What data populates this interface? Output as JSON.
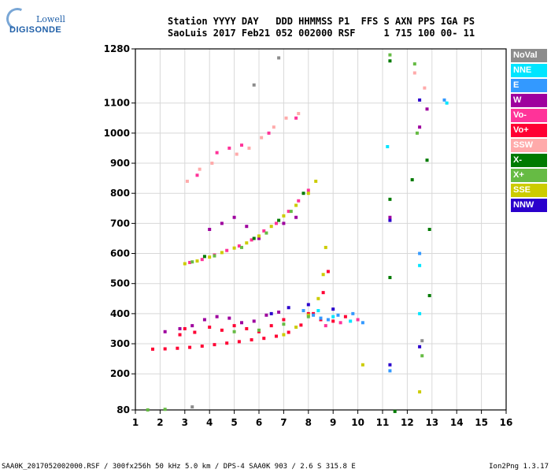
{
  "logo": {
    "line1": "Lowell",
    "line2": "DIGISONDE"
  },
  "header": {
    "row1": "Station YYYY DAY   DDD HHMMSS P1  FFS S AXN PPS IGA PS",
    "row2": "SaoLuis 2017 Feb21 052 002000 RSF     1 715 100 00- 11"
  },
  "legend": [
    {
      "label": "NoVal",
      "color": "#8c8c8c"
    },
    {
      "label": "NNE",
      "color": "#00e5ff"
    },
    {
      "label": "E",
      "color": "#3399ff"
    },
    {
      "label": "W",
      "color": "#9e009e"
    },
    {
      "label": "Vo-",
      "color": "#ff3399"
    },
    {
      "label": "Vo+",
      "color": "#ff0033"
    },
    {
      "label": "SSW",
      "color": "#ffaaaa"
    },
    {
      "label": "X-",
      "color": "#007a00"
    },
    {
      "label": "X+",
      "color": "#66bb44"
    },
    {
      "label": "SSE",
      "color": "#cccc00"
    },
    {
      "label": "NNW",
      "color": "#2a00cc"
    }
  ],
  "footer": {
    "left": "SAA0K_2017052002000.RSF / 300fx256h 50 kHz 5.0 km / DPS-4 SAA0K 903 / 2.6 S 315.8 E",
    "right": "Ion2Png 1.3.17"
  },
  "chart_data": {
    "type": "scatter",
    "xlim": [
      1,
      16
    ],
    "ylim": [
      80,
      1280
    ],
    "x_ticks": [
      1,
      2,
      3,
      4,
      5,
      6,
      7,
      8,
      9,
      10,
      11,
      12,
      13,
      14,
      15,
      16
    ],
    "y_ticks": [
      80,
      200,
      300,
      400,
      500,
      600,
      700,
      800,
      900,
      1000,
      1100,
      1280
    ],
    "grid": true,
    "legend_position": "right",
    "series": [
      {
        "name": "Vo+",
        "color": "#ff0033",
        "points": [
          [
            1.7,
            282
          ],
          [
            2.2,
            283
          ],
          [
            2.7,
            285
          ],
          [
            3.2,
            288
          ],
          [
            3.7,
            292
          ],
          [
            4.2,
            297
          ],
          [
            4.7,
            302
          ],
          [
            5.2,
            307
          ],
          [
            5.7,
            313
          ],
          [
            6.2,
            318
          ],
          [
            6.7,
            325
          ],
          [
            7.2,
            338
          ],
          [
            7.7,
            362
          ],
          [
            8.2,
            400
          ],
          [
            8.6,
            470
          ],
          [
            8.8,
            540
          ],
          [
            3.0,
            350
          ],
          [
            4.0,
            355
          ],
          [
            5.0,
            360
          ],
          [
            6.0,
            340
          ],
          [
            7.0,
            380
          ],
          [
            8.0,
            400
          ],
          [
            8.5,
            380
          ],
          [
            9.0,
            375
          ],
          [
            9.5,
            390
          ],
          [
            2.8,
            330
          ],
          [
            3.4,
            338
          ],
          [
            4.5,
            345
          ],
          [
            5.5,
            350
          ],
          [
            6.5,
            360
          ]
        ]
      },
      {
        "name": "Vo-",
        "color": "#ff3399",
        "points": [
          [
            3.2,
            570
          ],
          [
            3.7,
            580
          ],
          [
            4.2,
            595
          ],
          [
            4.7,
            610
          ],
          [
            5.2,
            625
          ],
          [
            5.7,
            645
          ],
          [
            6.2,
            675
          ],
          [
            6.7,
            700
          ],
          [
            7.2,
            740
          ],
          [
            7.6,
            775
          ],
          [
            8.0,
            810
          ],
          [
            4.3,
            935
          ],
          [
            4.8,
            950
          ],
          [
            5.3,
            960
          ],
          [
            6.4,
            1000
          ],
          [
            7.5,
            1050
          ],
          [
            3.5,
            860
          ],
          [
            8.7,
            360
          ],
          [
            9.3,
            370
          ],
          [
            10.0,
            380
          ]
        ]
      },
      {
        "name": "W",
        "color": "#9e009e",
        "points": [
          [
            2.2,
            340
          ],
          [
            2.8,
            350
          ],
          [
            3.3,
            360
          ],
          [
            3.8,
            380
          ],
          [
            4.3,
            390
          ],
          [
            4.8,
            385
          ],
          [
            5.3,
            370
          ],
          [
            5.8,
            375
          ],
          [
            6.3,
            395
          ],
          [
            6.8,
            405
          ],
          [
            4.0,
            680
          ],
          [
            4.5,
            700
          ],
          [
            5.0,
            720
          ],
          [
            5.5,
            690
          ],
          [
            6.0,
            650
          ],
          [
            7.0,
            700
          ],
          [
            7.5,
            720
          ],
          [
            11.3,
            720
          ],
          [
            12.5,
            1020
          ],
          [
            12.8,
            1080
          ]
        ]
      },
      {
        "name": "SSE",
        "color": "#cccc00",
        "points": [
          [
            3.0,
            566
          ],
          [
            3.5,
            575
          ],
          [
            4.0,
            588
          ],
          [
            4.5,
            603
          ],
          [
            5.0,
            618
          ],
          [
            5.5,
            635
          ],
          [
            6.0,
            658
          ],
          [
            6.5,
            690
          ],
          [
            7.0,
            725
          ],
          [
            7.5,
            760
          ],
          [
            8.0,
            800
          ],
          [
            8.3,
            840
          ],
          [
            7.0,
            330
          ],
          [
            7.5,
            355
          ],
          [
            8.0,
            395
          ],
          [
            8.4,
            450
          ],
          [
            8.6,
            530
          ],
          [
            8.7,
            620
          ],
          [
            10.2,
            230
          ],
          [
            12.5,
            140
          ]
        ]
      },
      {
        "name": "X+",
        "color": "#66bb44",
        "points": [
          [
            3.3,
            572
          ],
          [
            4.2,
            592
          ],
          [
            5.3,
            620
          ],
          [
            6.3,
            668
          ],
          [
            7.3,
            740
          ],
          [
            5.0,
            340
          ],
          [
            6.0,
            345
          ],
          [
            7.0,
            365
          ],
          [
            8.0,
            390
          ],
          [
            1.5,
            80
          ],
          [
            2.2,
            82
          ],
          [
            11.3,
            1260
          ],
          [
            12.3,
            1230
          ],
          [
            12.6,
            260
          ],
          [
            12.4,
            1000
          ]
        ]
      },
      {
        "name": "X-",
        "color": "#007a00",
        "points": [
          [
            3.8,
            590
          ],
          [
            5.8,
            650
          ],
          [
            6.8,
            710
          ],
          [
            7.8,
            800
          ],
          [
            11.3,
            780
          ],
          [
            11.3,
            520
          ],
          [
            11.3,
            1240
          ],
          [
            12.9,
            460
          ],
          [
            12.9,
            680
          ],
          [
            12.8,
            910
          ],
          [
            12.2,
            845
          ],
          [
            11.5,
            75
          ]
        ]
      },
      {
        "name": "E",
        "color": "#3399ff",
        "points": [
          [
            7.8,
            410
          ],
          [
            8.2,
            395
          ],
          [
            8.8,
            380
          ],
          [
            9.2,
            395
          ],
          [
            9.8,
            400
          ],
          [
            10.2,
            370
          ],
          [
            8.5,
            385
          ],
          [
            11.3,
            210
          ],
          [
            12.5,
            600
          ],
          [
            13.5,
            1110
          ]
        ]
      },
      {
        "name": "NNE",
        "color": "#00e5ff",
        "points": [
          [
            8.4,
            410
          ],
          [
            9.0,
            390
          ],
          [
            9.7,
            375
          ],
          [
            11.2,
            955
          ],
          [
            12.5,
            560
          ],
          [
            12.5,
            400
          ],
          [
            13.6,
            1100
          ]
        ]
      },
      {
        "name": "NNW",
        "color": "#2a00cc",
        "points": [
          [
            6.5,
            400
          ],
          [
            7.2,
            420
          ],
          [
            8.0,
            430
          ],
          [
            9.0,
            415
          ],
          [
            11.3,
            710
          ],
          [
            12.5,
            1110
          ],
          [
            12.5,
            290
          ],
          [
            11.3,
            230
          ]
        ]
      },
      {
        "name": "SSW",
        "color": "#ffaaaa",
        "points": [
          [
            3.1,
            840
          ],
          [
            3.6,
            880
          ],
          [
            4.1,
            900
          ],
          [
            5.1,
            930
          ],
          [
            5.6,
            950
          ],
          [
            6.1,
            985
          ],
          [
            6.6,
            1020
          ],
          [
            7.1,
            1050
          ],
          [
            7.6,
            1065
          ],
          [
            12.3,
            1200
          ],
          [
            12.7,
            1150
          ]
        ]
      },
      {
        "name": "NoVal",
        "color": "#8c8c8c",
        "points": [
          [
            3.3,
            90
          ],
          [
            5.8,
            1160
          ],
          [
            6.8,
            1250
          ],
          [
            12.6,
            310
          ]
        ]
      }
    ]
  }
}
